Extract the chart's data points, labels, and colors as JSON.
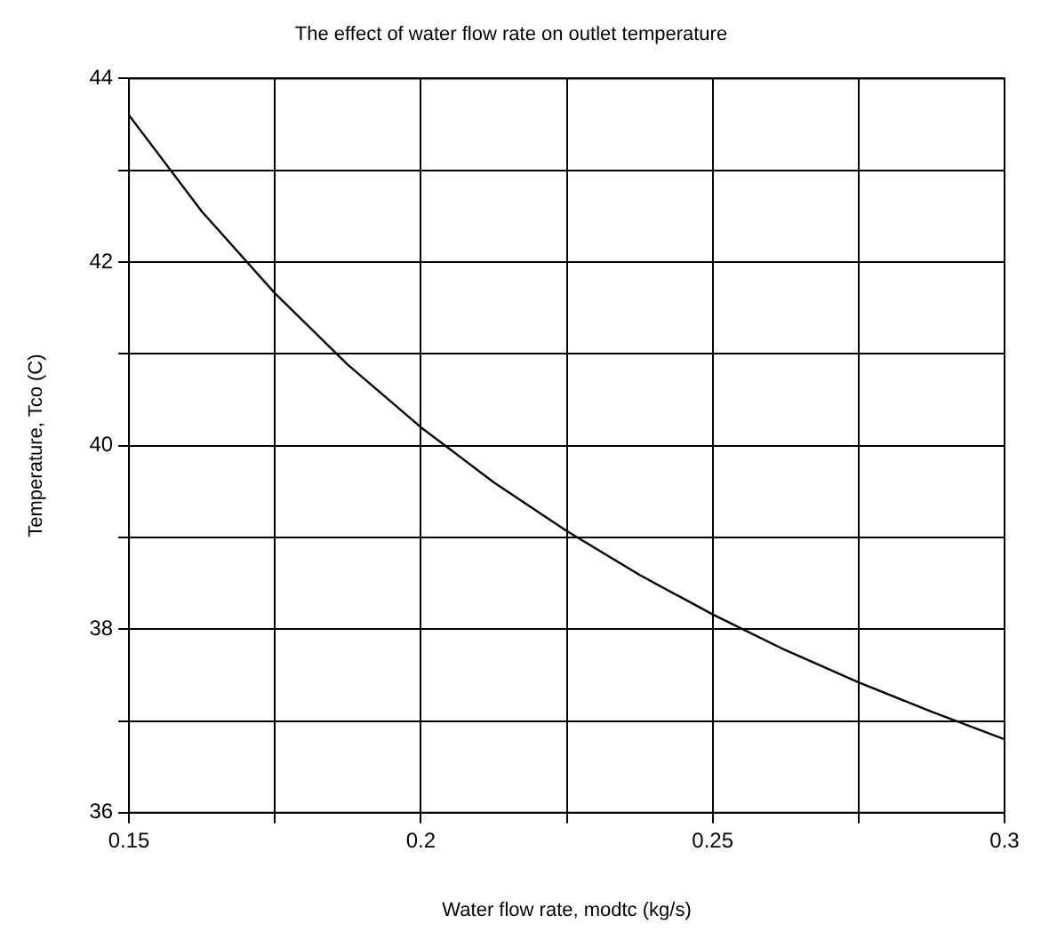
{
  "chart_data": {
    "type": "line",
    "title": "The effect of water flow rate on outlet temperature",
    "xlabel": "Water flow rate, modtc (kg/s)",
    "ylabel": "Temperature, Tco (C)",
    "x": [
      0.15,
      0.1625,
      0.175,
      0.1875,
      0.2,
      0.2125,
      0.225,
      0.2375,
      0.25,
      0.2625,
      0.275,
      0.2875,
      0.3
    ],
    "series": [
      {
        "color": "#000000",
        "values": [
          43.6,
          42.55,
          41.66,
          40.88,
          40.2,
          39.6,
          39.07,
          38.59,
          38.16,
          37.77,
          37.42,
          37.1,
          36.8
        ]
      }
    ],
    "xlim": [
      0.15,
      0.3
    ],
    "xticks": [
      0.15,
      {
        "value": 0.175,
        "label": null
      },
      0.2,
      {
        "value": 0.225,
        "label": null
      },
      0.25,
      {
        "value": 0.275,
        "label": null
      },
      0.3
    ],
    "ylim": [
      36,
      44
    ],
    "yticks": [
      36,
      {
        "value": 37,
        "label": null
      },
      38,
      {
        "value": 39,
        "label": null
      },
      40,
      {
        "value": 41,
        "label": null
      },
      42,
      {
        "value": 43,
        "label": null
      },
      44
    ],
    "grid": true,
    "legend": false,
    "marker": "none",
    "line_style": "solid"
  }
}
